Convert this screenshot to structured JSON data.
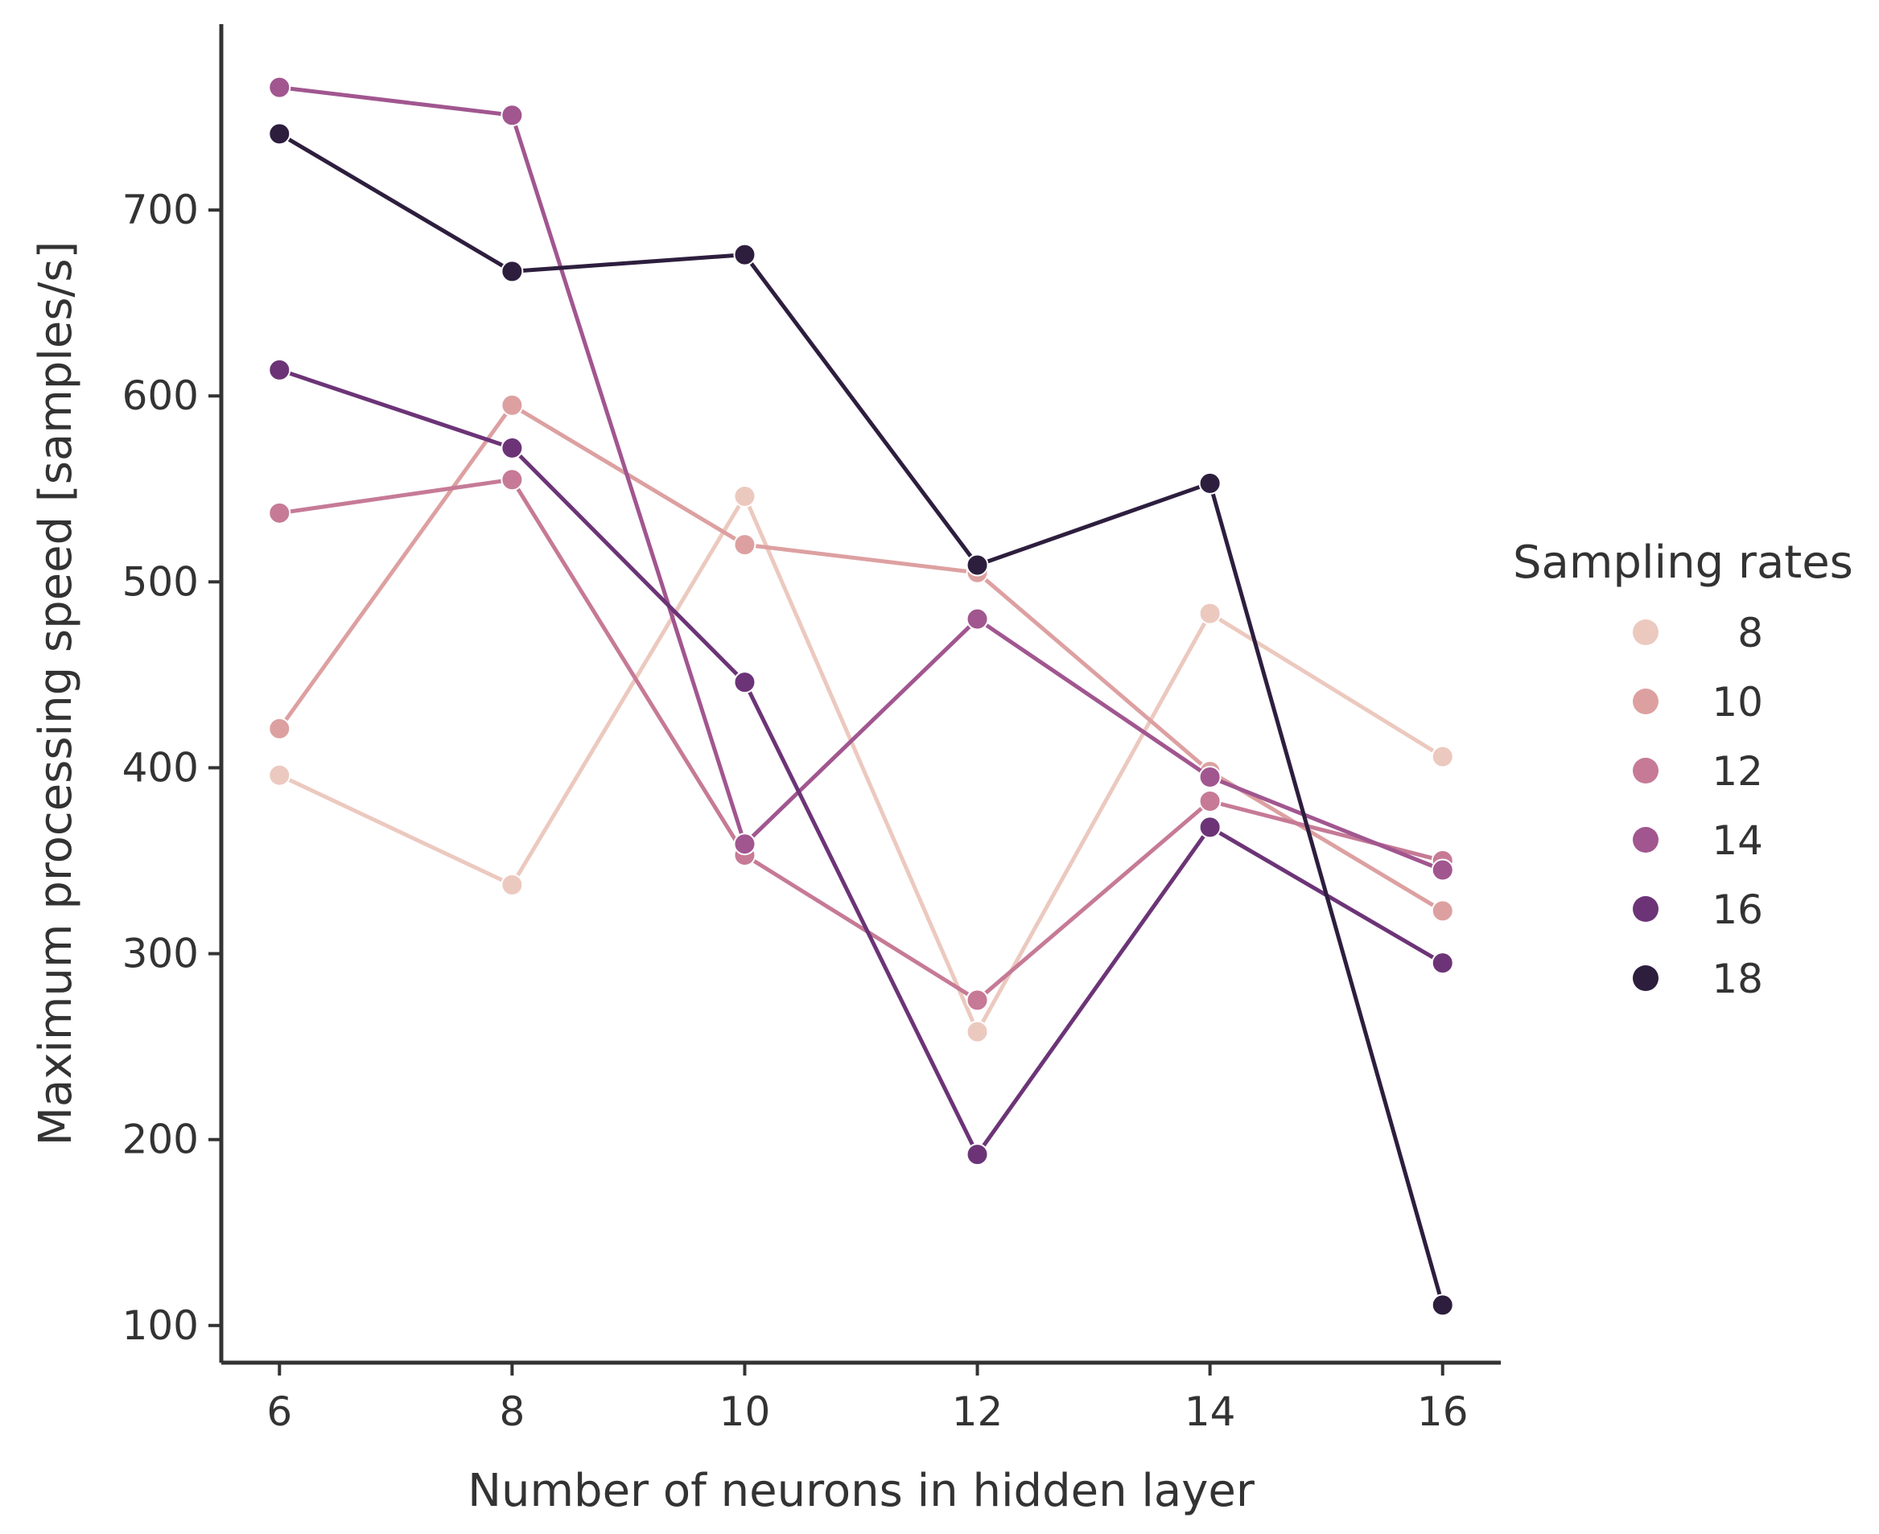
{
  "chart_data": {
    "type": "line",
    "title": "",
    "xlabel": "Number of neurons in hidden layer",
    "ylabel": "Maximum processing speed [samples/s]",
    "x": [
      6,
      8,
      10,
      12,
      14,
      16
    ],
    "xlim": [
      5.5,
      16.5
    ],
    "ylim": [
      80,
      800
    ],
    "xticks": [
      6,
      8,
      10,
      12,
      14,
      16
    ],
    "yticks": [
      100,
      200,
      300,
      400,
      500,
      600,
      700
    ],
    "grid": false,
    "legend": {
      "title": "Sampling rates",
      "placement": "right"
    },
    "series": [
      {
        "name": "8",
        "color": "#ecc9bf",
        "values": [
          396,
          337,
          546,
          258,
          483,
          406
        ]
      },
      {
        "name": "10",
        "color": "#dda0a1",
        "values": [
          421,
          595,
          520,
          505,
          398,
          323
        ]
      },
      {
        "name": "12",
        "color": "#c67a96",
        "values": [
          537,
          555,
          353,
          275,
          382,
          350
        ]
      },
      {
        "name": "14",
        "color": "#a1568f",
        "values": [
          766,
          751,
          359,
          480,
          395,
          345
        ]
      },
      {
        "name": "16",
        "color": "#6c3477",
        "values": [
          614,
          572,
          446,
          192,
          368,
          295
        ]
      },
      {
        "name": "18",
        "color": "#2d1e3e",
        "values": [
          741,
          667,
          676,
          509,
          553,
          111
        ]
      }
    ]
  }
}
